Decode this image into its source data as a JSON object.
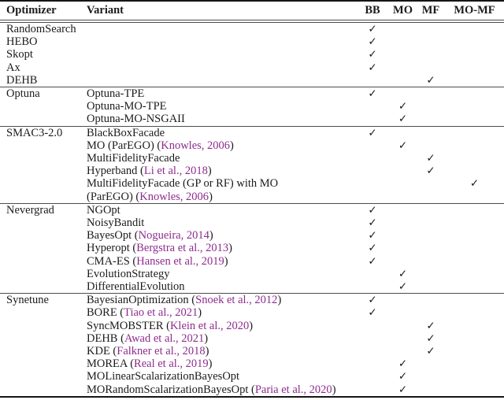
{
  "page": {
    "background": "#ffffff",
    "text_color": "#1b1b1b"
  },
  "table": {
    "columns": [
      {
        "key": "optimizer",
        "label": "Optimizer"
      },
      {
        "key": "variant",
        "label": "Variant"
      },
      {
        "key": "BB",
        "label": "BB"
      },
      {
        "key": "MO",
        "label": "MO"
      },
      {
        "key": "MF",
        "label": "MF"
      },
      {
        "key": "MO-MF",
        "label": "MO-MF"
      }
    ],
    "check_columns": [
      "BB",
      "MO",
      "MF",
      "MO-MF"
    ],
    "check_symbol": "✓",
    "colors": {
      "citation": "#8d2c8d",
      "rule_heavy": "#151515",
      "rule_light": "#4d4d4d"
    },
    "sections": [
      {
        "rows": [
          {
            "optimizer": "RandomSearch",
            "variant": [],
            "check": "BB"
          },
          {
            "optimizer": "HEBO",
            "variant": [],
            "check": "BB"
          },
          {
            "optimizer": "Skopt",
            "variant": [],
            "check": "BB"
          },
          {
            "optimizer": "Ax",
            "variant": [],
            "check": "BB"
          },
          {
            "optimizer": "DEHB",
            "variant": [],
            "check": "MF"
          }
        ]
      },
      {
        "rows": [
          {
            "optimizer": "Optuna",
            "variant": [
              {
                "text": "Optuna-TPE",
                "cite": false
              }
            ],
            "check": "BB"
          },
          {
            "optimizer": "",
            "variant": [
              {
                "text": "Optuna-MO-TPE",
                "cite": false
              }
            ],
            "check": "MO"
          },
          {
            "optimizer": "",
            "variant": [
              {
                "text": "Optuna-MO-NSGAII",
                "cite": false
              }
            ],
            "check": "MO"
          }
        ]
      },
      {
        "rows": [
          {
            "optimizer": "SMAC3-2.0",
            "variant": [
              {
                "text": "BlackBoxFacade",
                "cite": false
              }
            ],
            "check": "BB"
          },
          {
            "optimizer": "",
            "variant": [
              {
                "text": "MO (ParEGO) (",
                "cite": false
              },
              {
                "text": "Knowles, 2006",
                "cite": true
              },
              {
                "text": ")",
                "cite": false
              }
            ],
            "check": "MO"
          },
          {
            "optimizer": "",
            "variant": [
              {
                "text": "MultiFidelityFacade",
                "cite": false
              }
            ],
            "check": "MF"
          },
          {
            "optimizer": "",
            "variant": [
              {
                "text": "Hyperband (",
                "cite": false
              },
              {
                "text": "Li et al., 2018",
                "cite": true
              },
              {
                "text": ")",
                "cite": false
              }
            ],
            "check": "MF"
          },
          {
            "optimizer": "",
            "variant": [
              {
                "text": "MultiFidelityFacade (GP or RF) with MO",
                "cite": false
              }
            ],
            "check": "MO-MF"
          },
          {
            "optimizer": "",
            "variant": [
              {
                "text": "(ParEGO) (",
                "cite": false
              },
              {
                "text": "Knowles, 2006",
                "cite": true
              },
              {
                "text": ")",
                "cite": false
              }
            ],
            "check": null
          }
        ]
      },
      {
        "rows": [
          {
            "optimizer": "Nevergrad",
            "variant": [
              {
                "text": "NGOpt",
                "cite": false
              }
            ],
            "check": "BB"
          },
          {
            "optimizer": "",
            "variant": [
              {
                "text": "NoisyBandit",
                "cite": false
              }
            ],
            "check": "BB"
          },
          {
            "optimizer": "",
            "variant": [
              {
                "text": "BayesOpt (",
                "cite": false
              },
              {
                "text": "Nogueira, 2014",
                "cite": true
              },
              {
                "text": ")",
                "cite": false
              }
            ],
            "check": "BB"
          },
          {
            "optimizer": "",
            "variant": [
              {
                "text": "Hyperopt (",
                "cite": false
              },
              {
                "text": "Bergstra et al., 2013",
                "cite": true
              },
              {
                "text": ")",
                "cite": false
              }
            ],
            "check": "BB"
          },
          {
            "optimizer": "",
            "variant": [
              {
                "text": "CMA-ES (",
                "cite": false
              },
              {
                "text": "Hansen et al., 2019",
                "cite": true
              },
              {
                "text": ")",
                "cite": false
              }
            ],
            "check": "BB"
          },
          {
            "optimizer": "",
            "variant": [
              {
                "text": "EvolutionStrategy",
                "cite": false
              }
            ],
            "check": "MO"
          },
          {
            "optimizer": "",
            "variant": [
              {
                "text": "DifferentialEvolution",
                "cite": false
              }
            ],
            "check": "MO"
          }
        ]
      },
      {
        "rows": [
          {
            "optimizer": "Synetune",
            "variant": [
              {
                "text": "BayesianOptimization (",
                "cite": false
              },
              {
                "text": "Snoek et al., 2012",
                "cite": true
              },
              {
                "text": ")",
                "cite": false
              }
            ],
            "check": "BB"
          },
          {
            "optimizer": "",
            "variant": [
              {
                "text": "BORE (",
                "cite": false
              },
              {
                "text": "Tiao et al., 2021",
                "cite": true
              },
              {
                "text": ")",
                "cite": false
              }
            ],
            "check": "BB"
          },
          {
            "optimizer": "",
            "variant": [
              {
                "text": "SyncMOBSTER (",
                "cite": false
              },
              {
                "text": "Klein et al., 2020",
                "cite": true
              },
              {
                "text": ")",
                "cite": false
              }
            ],
            "check": "MF"
          },
          {
            "optimizer": "",
            "variant": [
              {
                "text": "DEHB (",
                "cite": false
              },
              {
                "text": "Awad et al., 2021",
                "cite": true
              },
              {
                "text": ")",
                "cite": false
              }
            ],
            "check": "MF"
          },
          {
            "optimizer": "",
            "variant": [
              {
                "text": "KDE (",
                "cite": false
              },
              {
                "text": "Falkner et al., 2018",
                "cite": true
              },
              {
                "text": ")",
                "cite": false
              }
            ],
            "check": "MF"
          },
          {
            "optimizer": "",
            "variant": [
              {
                "text": "MOREA (",
                "cite": false
              },
              {
                "text": "Real et al., 2019",
                "cite": true
              },
              {
                "text": ")",
                "cite": false
              }
            ],
            "check": "MO"
          },
          {
            "optimizer": "",
            "variant": [
              {
                "text": "MOLinearScalarizationBayesOpt",
                "cite": false
              }
            ],
            "check": "MO"
          },
          {
            "optimizer": "",
            "variant": [
              {
                "text": "MORandomScalarizationBayesOpt (",
                "cite": false
              },
              {
                "text": "Paria et al., 2020",
                "cite": true
              },
              {
                "text": ")",
                "cite": false
              }
            ],
            "check": "MO"
          }
        ]
      }
    ]
  }
}
